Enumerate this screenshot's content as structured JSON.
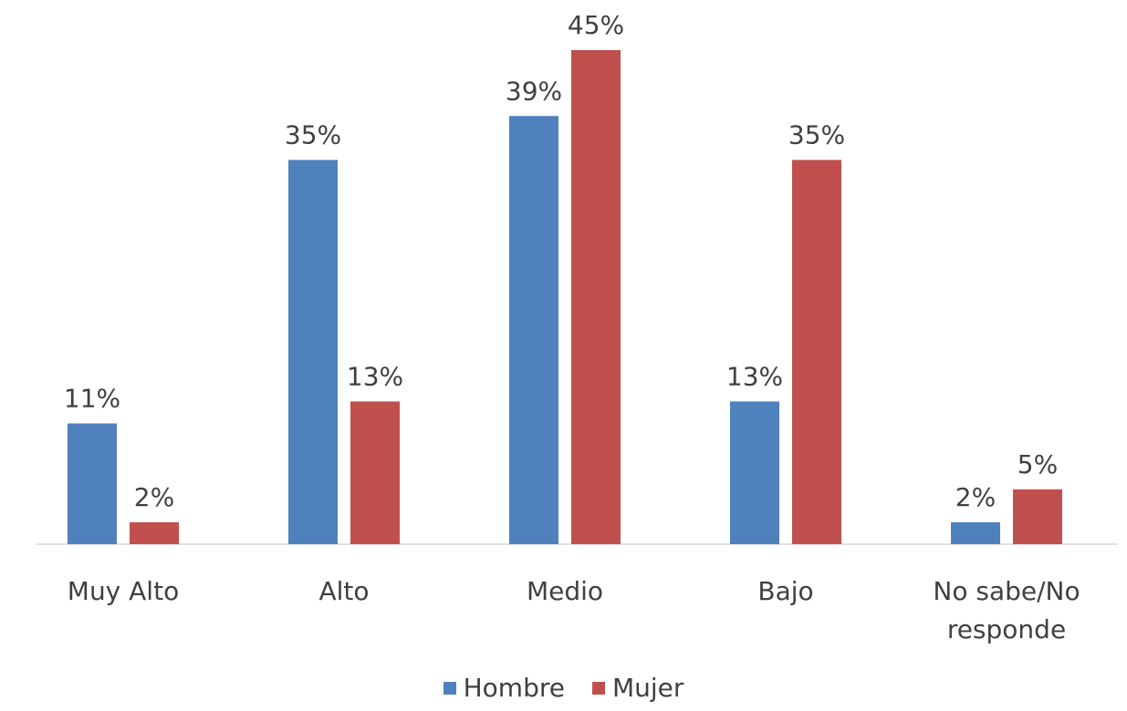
{
  "chart_data": {
    "type": "bar",
    "categories": [
      "Muy Alto",
      "Alto",
      "Medio",
      "Bajo",
      "No sabe/No responde"
    ],
    "series": [
      {
        "name": "Hombre",
        "color": "#4f81bd",
        "values": [
          11,
          35,
          39,
          13,
          2
        ],
        "value_labels": [
          "11%",
          "35%",
          "39%",
          "13%",
          "2%"
        ]
      },
      {
        "name": "Mujer",
        "color": "#c0504d",
        "values": [
          2,
          13,
          45,
          35,
          5
        ],
        "value_labels": [
          "2%",
          "13%",
          "45%",
          "35%",
          "5%"
        ]
      }
    ],
    "legend": "bottom"
  }
}
